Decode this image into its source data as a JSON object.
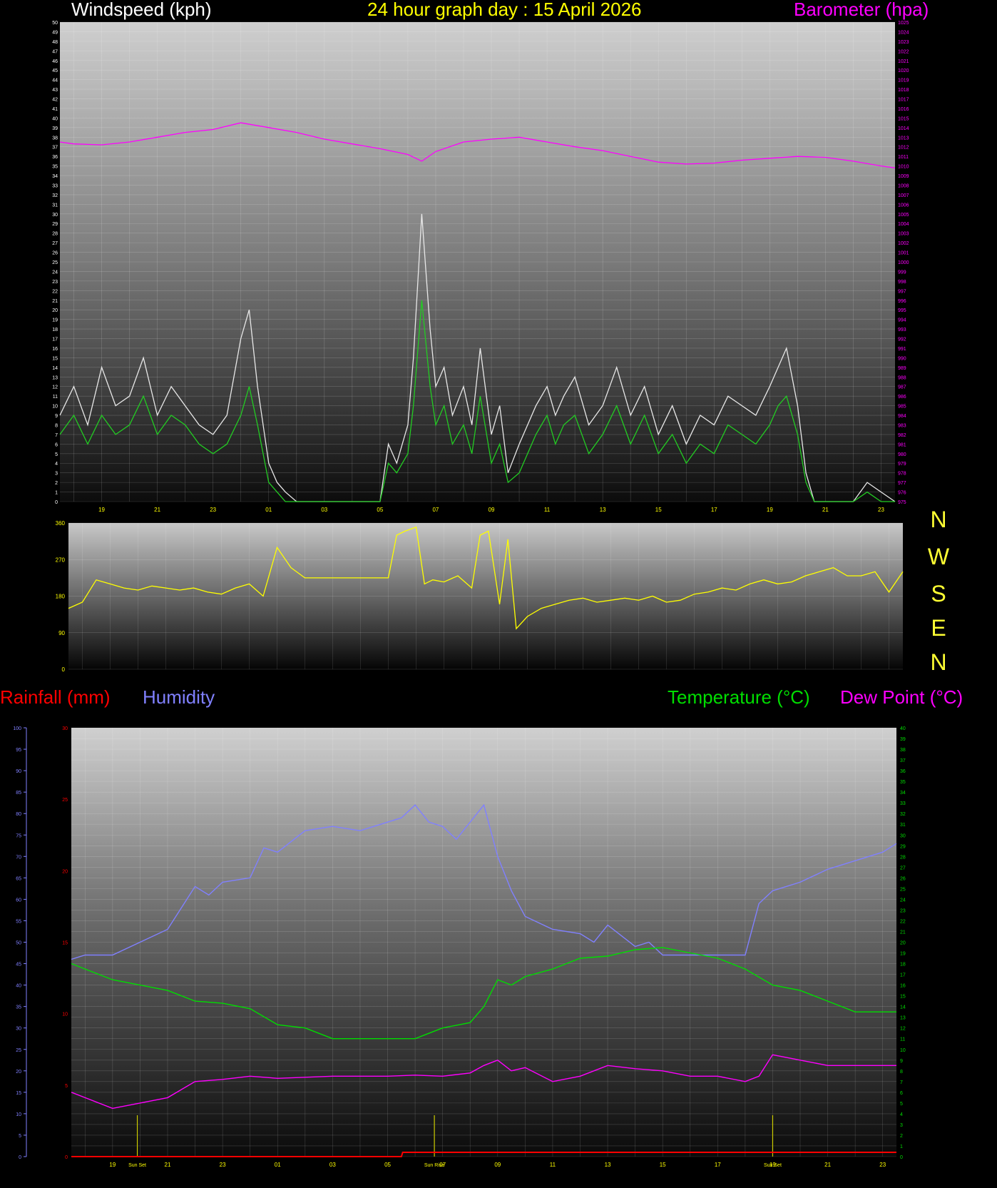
{
  "header": {
    "wind_title": "Windspeed (kph)",
    "date_title": "24 hour graph day : 15 April 2026",
    "baro_title": "Barometer (hpa)"
  },
  "middle": {
    "direction_letters": [
      "N",
      "W",
      "S",
      "E",
      "N"
    ],
    "rain_title": "Rainfall (mm)",
    "humidity_title": "Humidity",
    "temp_title": "Temperature (°C)",
    "dew_title": "Dew Point (°C)"
  },
  "colors": {
    "wind_gust": "#e8e8e8",
    "wind_avg": "#22cc22",
    "barometer": "#ff00ff",
    "direction": "#ffff00",
    "rain": "#ff0000",
    "humidity": "#8080ff",
    "temperature": "#00dd00",
    "dewpoint": "#ff00ff",
    "sun_marker": "#cccc00"
  },
  "chart_data": [
    {
      "type": "line",
      "name": "windspeed-barometer",
      "x_ticks": [
        "19",
        "21",
        "23",
        "01",
        "03",
        "05",
        "07",
        "09",
        "11",
        "13",
        "15",
        "17",
        "19",
        "21",
        "23"
      ],
      "left_axis": {
        "label": "Windspeed (kph)",
        "ylim": [
          0,
          50
        ]
      },
      "right_axis": {
        "label": "Barometer (hpa)",
        "ylim": [
          975,
          1025
        ]
      },
      "series": [
        {
          "name": "Barometer",
          "axis": "right",
          "x": [
            17.5,
            18,
            19,
            20,
            21,
            22,
            23,
            24,
            25,
            26,
            27,
            28,
            29,
            30,
            30.5,
            31,
            32,
            33,
            34,
            35,
            36,
            37,
            38,
            39,
            40,
            41,
            42,
            43,
            44,
            45,
            46,
            47,
            47.5
          ],
          "y": [
            1012.5,
            1012.3,
            1012.2,
            1012.5,
            1013.0,
            1013.5,
            1013.8,
            1014.5,
            1014.0,
            1013.5,
            1012.8,
            1012.3,
            1011.8,
            1011.2,
            1010.5,
            1011.5,
            1012.5,
            1012.8,
            1013.0,
            1012.5,
            1012.0,
            1011.6,
            1011.0,
            1010.4,
            1010.2,
            1010.3,
            1010.6,
            1010.8,
            1011.0,
            1010.9,
            1010.5,
            1010.0,
            1009.8
          ]
        },
        {
          "name": "Wind gust",
          "axis": "left",
          "x": [
            17.5,
            18,
            18.5,
            19,
            19.5,
            20,
            20.5,
            21,
            21.5,
            22,
            22.5,
            23,
            23.5,
            24,
            24.3,
            24.6,
            25,
            25.3,
            25.6,
            26,
            26.5,
            27,
            27.5,
            28,
            28.5,
            29,
            29.3,
            29.6,
            30,
            30.2,
            30.5,
            30.8,
            31,
            31.3,
            31.6,
            32,
            32.3,
            32.6,
            33,
            33.3,
            33.6,
            34,
            34.3,
            34.6,
            35,
            35.3,
            35.6,
            36,
            36.5,
            37,
            37.5,
            38,
            38.5,
            39,
            39.5,
            40,
            40.5,
            41,
            41.5,
            42,
            42.5,
            43,
            43.3,
            43.6,
            44,
            44.3,
            44.6,
            45,
            45.3,
            45.6,
            46,
            46.5,
            47,
            47.5
          ],
          "y": [
            9,
            12,
            8,
            14,
            10,
            11,
            15,
            9,
            12,
            10,
            8,
            7,
            9,
            17,
            20,
            12,
            4,
            2,
            1,
            0,
            0,
            0,
            0,
            0,
            0,
            0,
            6,
            4,
            8,
            15,
            30,
            18,
            12,
            14,
            9,
            12,
            8,
            16,
            7,
            10,
            3,
            6,
            8,
            10,
            12,
            9,
            11,
            13,
            8,
            10,
            14,
            9,
            12,
            7,
            10,
            6,
            9,
            8,
            11,
            10,
            9,
            12,
            14,
            16,
            10,
            3,
            0,
            0,
            0,
            0,
            0,
            2,
            1,
            0
          ]
        },
        {
          "name": "Wind average",
          "axis": "left",
          "x": [
            17.5,
            18,
            18.5,
            19,
            19.5,
            20,
            20.5,
            21,
            21.5,
            22,
            22.5,
            23,
            23.5,
            24,
            24.3,
            24.6,
            25,
            25.3,
            25.6,
            26,
            26.5,
            27,
            27.5,
            28,
            28.5,
            29,
            29.3,
            29.6,
            30,
            30.2,
            30.5,
            30.8,
            31,
            31.3,
            31.6,
            32,
            32.3,
            32.6,
            33,
            33.3,
            33.6,
            34,
            34.3,
            34.6,
            35,
            35.3,
            35.6,
            36,
            36.5,
            37,
            37.5,
            38,
            38.5,
            39,
            39.5,
            40,
            40.5,
            41,
            41.5,
            42,
            42.5,
            43,
            43.3,
            43.6,
            44,
            44.3,
            44.6,
            45,
            45.3,
            45.6,
            46,
            46.5,
            47,
            47.5
          ],
          "y": [
            7,
            9,
            6,
            9,
            7,
            8,
            11,
            7,
            9,
            8,
            6,
            5,
            6,
            9,
            12,
            8,
            2,
            1,
            0,
            0,
            0,
            0,
            0,
            0,
            0,
            0,
            4,
            3,
            5,
            10,
            21,
            12,
            8,
            10,
            6,
            8,
            5,
            11,
            4,
            6,
            2,
            3,
            5,
            7,
            9,
            6,
            8,
            9,
            5,
            7,
            10,
            6,
            9,
            5,
            7,
            4,
            6,
            5,
            8,
            7,
            6,
            8,
            10,
            11,
            7,
            2,
            0,
            0,
            0,
            0,
            0,
            1,
            0,
            0
          ]
        }
      ]
    },
    {
      "type": "line",
      "name": "wind-direction",
      "x_ticks": [],
      "ylim": [
        0,
        360
      ],
      "y_ticks": [
        "360",
        "270",
        "180",
        "90",
        "0"
      ],
      "series": [
        {
          "name": "Direction",
          "x": [
            17.5,
            18,
            18.5,
            19,
            19.5,
            20,
            20.5,
            21,
            21.5,
            22,
            22.5,
            23,
            23.5,
            24,
            24.5,
            25,
            25.5,
            26,
            26.5,
            27,
            27.5,
            28,
            28.5,
            29,
            29.3,
            29.6,
            30,
            30.3,
            30.6,
            31,
            31.5,
            32,
            32.3,
            32.6,
            33,
            33.3,
            33.6,
            34,
            34.5,
            35,
            35.5,
            36,
            36.5,
            37,
            37.5,
            38,
            38.5,
            39,
            39.5,
            40,
            40.5,
            41,
            41.5,
            42,
            42.5,
            43,
            43.5,
            44,
            44.5,
            45,
            45.5,
            46,
            46.5,
            47,
            47.5
          ],
          "y": [
            150,
            165,
            220,
            210,
            200,
            195,
            205,
            200,
            195,
            200,
            190,
            185,
            200,
            210,
            180,
            300,
            250,
            225,
            225,
            225,
            225,
            225,
            225,
            225,
            330,
            340,
            350,
            210,
            220,
            215,
            230,
            200,
            330,
            340,
            160,
            320,
            100,
            130,
            150,
            160,
            170,
            175,
            165,
            170,
            175,
            170,
            180,
            165,
            170,
            185,
            190,
            200,
            195,
            210,
            220,
            210,
            215,
            230,
            240,
            250,
            230,
            230,
            240,
            190,
            240
          ]
        }
      ]
    },
    {
      "type": "line",
      "name": "rain-humidity-temperature-dewpoint",
      "x_ticks": [
        "19",
        "21",
        "23",
        "01",
        "03",
        "05",
        "07",
        "09",
        "11",
        "13",
        "15",
        "17",
        "19",
        "21",
        "23"
      ],
      "humidity_axis": {
        "label": "Humidity",
        "ylim": [
          0,
          100
        ]
      },
      "rain_axis": {
        "label": "Rainfall (mm)",
        "ylim": [
          0,
          30
        ]
      },
      "temp_axis": {
        "label": "Temperature (°C)",
        "ylim": [
          0,
          40
        ]
      },
      "annotations": [
        {
          "x": 19.9,
          "label": "Sun Set"
        },
        {
          "x": 30.7,
          "label": "Sun Rise"
        },
        {
          "x": 43.0,
          "label": "Sun Set"
        }
      ],
      "series": [
        {
          "name": "Humidity",
          "axis": "humidity",
          "x": [
            17.5,
            18,
            19,
            20,
            21,
            21.5,
            22,
            22.5,
            23,
            24,
            24.5,
            25,
            26,
            27,
            28,
            29,
            29.5,
            30,
            30.5,
            31,
            31.5,
            32,
            32.5,
            33,
            33.5,
            34,
            35,
            36,
            36.5,
            37,
            38,
            38.5,
            39,
            40,
            41,
            42,
            42.5,
            43,
            44,
            45,
            46,
            47,
            47.5
          ],
          "y": [
            46,
            47,
            47,
            50,
            53,
            58,
            63,
            61,
            64,
            65,
            72,
            71,
            76,
            77,
            76,
            78,
            79,
            82,
            78,
            77,
            74,
            78,
            82,
            70,
            62,
            56,
            53,
            52,
            50,
            54,
            49,
            50,
            47,
            47,
            47,
            47,
            59,
            62,
            64,
            67,
            69,
            71,
            73
          ]
        },
        {
          "name": "Temperature",
          "axis": "temp",
          "x": [
            17.5,
            18,
            19,
            20,
            21,
            22,
            23,
            24,
            25,
            26,
            27,
            28,
            29,
            30,
            30.5,
            31,
            32,
            32.5,
            33,
            33.5,
            34,
            35,
            36,
            37,
            38,
            39,
            40,
            41,
            42,
            43,
            44,
            45,
            46,
            47,
            47.5
          ],
          "y": [
            18,
            17.5,
            16.5,
            16,
            15.5,
            14.5,
            14.3,
            13.8,
            12.3,
            12.0,
            11.0,
            11.0,
            11.0,
            11.0,
            11.5,
            12.0,
            12.5,
            14.0,
            16.5,
            16.0,
            16.8,
            17.5,
            18.5,
            18.7,
            19.3,
            19.5,
            19.0,
            18.5,
            17.5,
            16.0,
            15.5,
            14.5,
            13.5,
            13.5,
            13.5
          ]
        },
        {
          "name": "Dew Point",
          "axis": "temp",
          "x": [
            17.5,
            18,
            19,
            20,
            21,
            22,
            23,
            24,
            25,
            26,
            27,
            28,
            29,
            30,
            31,
            32,
            32.5,
            33,
            33.5,
            34,
            35,
            36,
            37,
            38,
            39,
            40,
            41,
            42,
            42.5,
            43,
            44,
            45,
            46,
            47,
            47.5
          ],
          "y": [
            6.0,
            5.5,
            4.5,
            5.0,
            5.5,
            7.0,
            7.2,
            7.5,
            7.3,
            7.4,
            7.5,
            7.5,
            7.5,
            7.6,
            7.5,
            7.8,
            8.5,
            9.0,
            8.0,
            8.3,
            7.0,
            7.5,
            8.5,
            8.2,
            8.0,
            7.5,
            7.5,
            7.0,
            7.5,
            9.5,
            9.0,
            8.5,
            8.5,
            8.5,
            8.5
          ]
        },
        {
          "name": "Rainfall",
          "axis": "rain",
          "x": [
            17.5,
            29.5,
            29.55,
            47.5
          ],
          "y": [
            0,
            0,
            0.3,
            0.3
          ]
        }
      ]
    }
  ]
}
